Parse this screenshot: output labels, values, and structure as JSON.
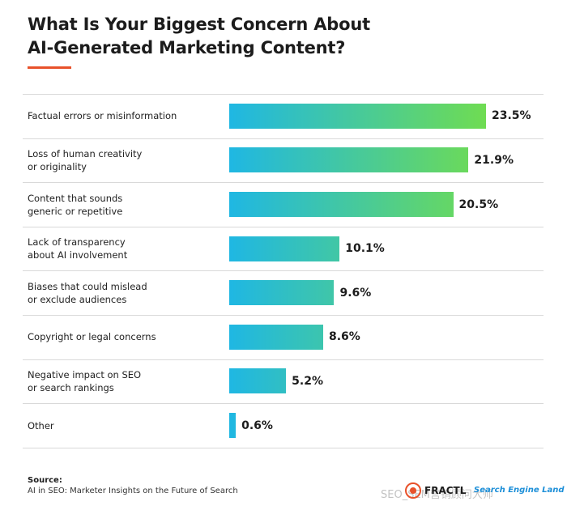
{
  "header": {
    "title_line1": "What Is Your Biggest Concern About",
    "title_line2": "AI-Generated Marketing Content?"
  },
  "colors": {
    "accent": "#e8512a",
    "bar_start": "#1fb7e3",
    "bar_end": "#6fdc52",
    "divider": "#d9d9d9"
  },
  "chart_data": {
    "type": "bar",
    "orientation": "horizontal",
    "title": "What Is Your Biggest Concern About AI-Generated Marketing Content?",
    "categories": [
      "Factual errors or misinformation",
      "Loss of human creativity\nor originality",
      "Content that sounds\ngeneric or repetitive",
      "Lack of transparency\nabout AI involvement",
      "Biases that could mislead\nor exclude audiences",
      "Copyright or legal concerns",
      "Negative impact on SEO\nor search rankings",
      "Other"
    ],
    "values": [
      23.5,
      21.9,
      20.5,
      10.1,
      9.6,
      8.6,
      5.2,
      0.6
    ],
    "value_labels": [
      "23.5%",
      "21.9%",
      "20.5%",
      "10.1%",
      "9.6%",
      "8.6%",
      "5.2%",
      "0.6%"
    ],
    "unit": "%",
    "xlim": [
      0,
      23.5
    ],
    "xlabel": "",
    "ylabel": "",
    "grid": false,
    "legend": "none"
  },
  "footer": {
    "source_label": "Source:",
    "source_text": "AI in SEO: Marketer Insights on the Future of Search",
    "logo1_text": "FRACTL",
    "logo2_text": "Search Engine Land",
    "watermark": "SEO_SEM营销顾问大师"
  }
}
